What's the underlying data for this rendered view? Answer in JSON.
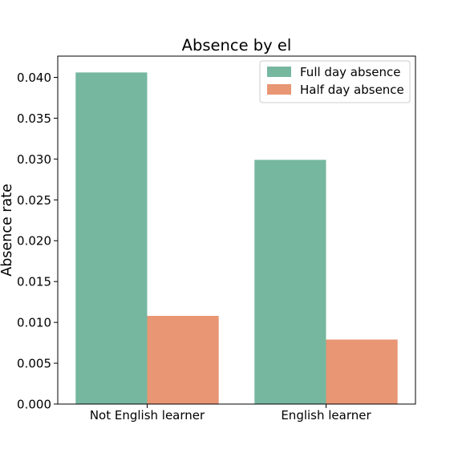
{
  "chart_data": {
    "type": "bar",
    "title": "Absence by el",
    "xlabel": "",
    "ylabel": "Absence rate",
    "categories": [
      "Not English learner",
      "English learner"
    ],
    "series": [
      {
        "name": "Full day absence",
        "values": [
          0.0406,
          0.0299
        ],
        "color": "#76b7a0"
      },
      {
        "name": "Half day absence",
        "values": [
          0.0108,
          0.0079
        ],
        "color": "#e99674"
      }
    ],
    "ylim": [
      0,
      0.0426
    ],
    "yticks": [
      "0.000",
      "0.005",
      "0.010",
      "0.015",
      "0.020",
      "0.025",
      "0.030",
      "0.035",
      "0.040"
    ],
    "grid": false,
    "legend_position": "top-right"
  }
}
